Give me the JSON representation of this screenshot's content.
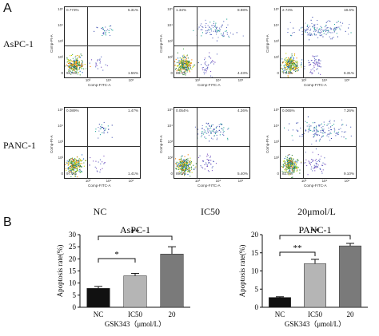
{
  "panels": {
    "a": "A",
    "b": "B"
  },
  "rows": [
    "AsPC-1",
    "PANC-1"
  ],
  "columns": [
    "NC",
    "IC50",
    "20μmol/L"
  ],
  "flow": {
    "x_axis_label": "Comp-FITC-A",
    "y_axis_label": "Comp-PI-A",
    "x_ticks": [
      "10³",
      "10⁴",
      "10⁵"
    ],
    "y_ticks": [
      "10⁵",
      "10⁴",
      "10³",
      "10²",
      "0"
    ],
    "plots": [
      {
        "q": [
          "0.773%",
          "5.31%",
          "92.4%",
          "1.55%"
        ],
        "cluster": "low"
      },
      {
        "q": [
          "1.34%",
          "8.98%",
          "85.4%",
          "4.23%"
        ],
        "cluster": "mid"
      },
      {
        "q": [
          "2.74%",
          "18.6%",
          "77.2%",
          "6.31%"
        ],
        "cluster": "high"
      },
      {
        "q": [
          "0.089%",
          "1.47%",
          "97.0%",
          "1.41%"
        ],
        "cluster": "low"
      },
      {
        "q": [
          "0.054%",
          "4.26%",
          "89.4%",
          "5.40%"
        ],
        "cluster": "mid"
      },
      {
        "q": [
          "0.065%",
          "7.26%",
          "82.8%",
          "9.10%"
        ],
        "cluster": "high"
      }
    ]
  },
  "chart_data": [
    {
      "type": "bar",
      "title": "AsPC-1",
      "categories": [
        "NC",
        "IC50",
        "20"
      ],
      "values": [
        7.8,
        13,
        22
      ],
      "errors": [
        0.8,
        1.0,
        3.0
      ],
      "colors": [
        "#111111",
        "#b5b5b5",
        "#7a7a7a"
      ],
      "xlabel": "GSK343（μmol/L）",
      "ylabel": "Apoptosis rate(%)",
      "ylim": [
        0,
        30
      ],
      "yticks": [
        "0",
        "5",
        "10",
        "15",
        "20",
        "25",
        "30"
      ],
      "significance": [
        {
          "from": "NC",
          "to": "IC50",
          "label": "*"
        },
        {
          "from": "NC",
          "to": "20",
          "label": "**"
        }
      ]
    },
    {
      "type": "bar",
      "title": "PANC-1",
      "categories": [
        "NC",
        "IC50",
        "20"
      ],
      "values": [
        2.7,
        12,
        16.9
      ],
      "errors": [
        0.2,
        1.2,
        0.7
      ],
      "colors": [
        "#111111",
        "#b5b5b5",
        "#7a7a7a"
      ],
      "xlabel": "GSK343（μmol/L）",
      "ylabel": "Apoptosis rate(%)",
      "ylim": [
        0,
        20
      ],
      "yticks": [
        "0",
        "5",
        "10",
        "15",
        "20"
      ],
      "significance": [
        {
          "from": "NC",
          "to": "IC50",
          "label": "**"
        },
        {
          "from": "NC",
          "to": "20",
          "label": "**"
        }
      ]
    }
  ]
}
